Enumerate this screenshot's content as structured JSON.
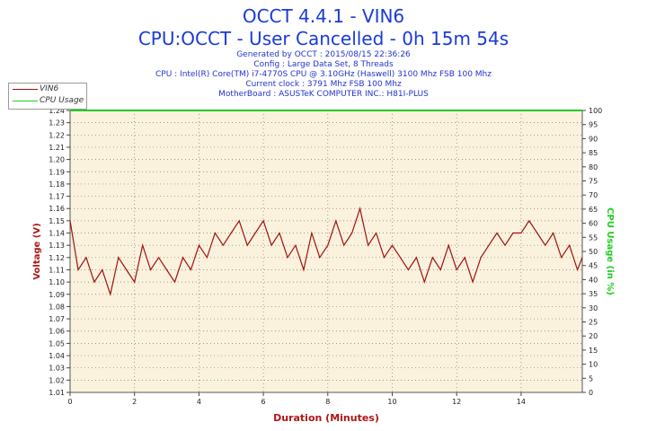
{
  "header": {
    "title": "OCCT 4.4.1 - VIN6",
    "subtitle": "CPU:OCCT - User Cancelled - 0h 15m 54s",
    "info_lines": [
      "Generated by OCCT : 2015/08/15 22:36:26",
      "Config : Large Data Set, 8 Threads",
      "CPU : Intel(R) Core(TM) i7-4770S CPU @ 3.10GHz (Haswell) 3100 Mhz FSB 100 Mhz",
      "Current clock : 3791 Mhz FSB 100 Mhz",
      "MotherBoard : ASUSTeK COMPUTER INC.: H81I-PLUS"
    ]
  },
  "colors": {
    "vin6": "#a01010",
    "cpu_usage": "#22cc22",
    "plot_bg": "#fbf2dd",
    "title": "#1a3bd6",
    "axis_label_left": "#b01515",
    "axis_label_right": "#22cc22"
  },
  "chart_data": {
    "type": "line",
    "xlabel": "Duration (Minutes)",
    "ylabel": "Voltage (V)",
    "y2label": "CPU Usage (in %)",
    "xlim": [
      0,
      15.9
    ],
    "ylim": [
      1.01,
      1.24
    ],
    "y2lim": [
      0,
      100
    ],
    "x_ticks": [
      0,
      2,
      4,
      6,
      8,
      10,
      12,
      14
    ],
    "y_ticks": [
      1.01,
      1.02,
      1.03,
      1.04,
      1.05,
      1.06,
      1.07,
      1.08,
      1.09,
      1.1,
      1.11,
      1.12,
      1.13,
      1.14,
      1.15,
      1.16,
      1.17,
      1.18,
      1.19,
      1.2,
      1.21,
      1.22,
      1.23,
      1.24
    ],
    "y2_ticks": [
      0,
      5,
      10,
      15,
      20,
      25,
      30,
      35,
      40,
      45,
      50,
      55,
      60,
      65,
      70,
      75,
      80,
      85,
      90,
      95,
      100
    ],
    "grid": true,
    "legend_position": "top-left",
    "series": [
      {
        "name": "VIN6",
        "axis": "left",
        "x": [
          0,
          0.25,
          0.5,
          0.75,
          1,
          1.25,
          1.5,
          1.75,
          2,
          2.25,
          2.5,
          2.75,
          3,
          3.25,
          3.5,
          3.75,
          4,
          4.25,
          4.5,
          4.75,
          5,
          5.25,
          5.5,
          5.75,
          6,
          6.25,
          6.5,
          6.75,
          7,
          7.25,
          7.5,
          7.75,
          8,
          8.25,
          8.5,
          8.75,
          9,
          9.25,
          9.5,
          9.75,
          10,
          10.25,
          10.5,
          10.75,
          11,
          11.25,
          11.5,
          11.75,
          12,
          12.25,
          12.5,
          12.75,
          13,
          13.25,
          13.5,
          13.75,
          14,
          14.25,
          14.5,
          14.75,
          15,
          15.25,
          15.5,
          15.75,
          15.9
        ],
        "values": [
          1.15,
          1.11,
          1.12,
          1.1,
          1.11,
          1.09,
          1.12,
          1.11,
          1.1,
          1.13,
          1.11,
          1.12,
          1.11,
          1.1,
          1.12,
          1.11,
          1.13,
          1.12,
          1.14,
          1.13,
          1.14,
          1.15,
          1.13,
          1.14,
          1.15,
          1.13,
          1.14,
          1.12,
          1.13,
          1.11,
          1.14,
          1.12,
          1.13,
          1.15,
          1.13,
          1.14,
          1.16,
          1.13,
          1.14,
          1.12,
          1.13,
          1.12,
          1.11,
          1.12,
          1.1,
          1.12,
          1.11,
          1.13,
          1.11,
          1.12,
          1.1,
          1.12,
          1.13,
          1.14,
          1.13,
          1.14,
          1.14,
          1.15,
          1.14,
          1.13,
          1.14,
          1.12,
          1.13,
          1.11,
          1.12
        ]
      },
      {
        "name": "CPU Usage",
        "axis": "right",
        "x": [
          0,
          15.9
        ],
        "values": [
          100,
          100
        ]
      }
    ]
  }
}
